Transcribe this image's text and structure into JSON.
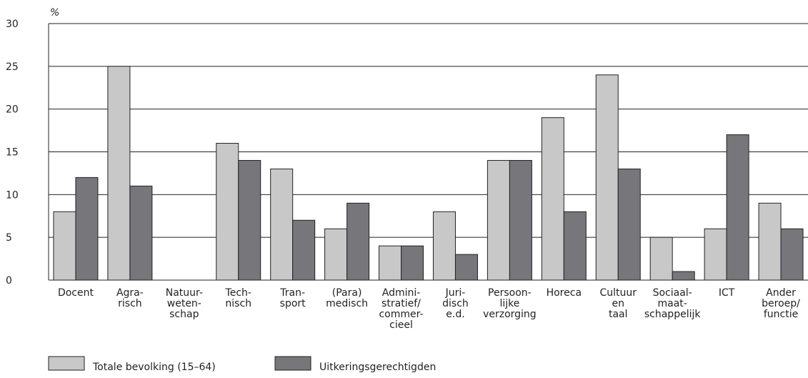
{
  "chart_data": {
    "type": "bar",
    "y_label": "%",
    "categories": [
      "Docent",
      "Agra-\nrisch",
      "Natuur-\nweten-\nschap",
      "Tech-\nnisch",
      "Tran-\nsport",
      "(Para)\nmedisch",
      "Admini-\nstratief/\ncommer-\ncieel",
      "Juri-\ndisch\ne.d.",
      "Persoon-\nlijke\nverzorging",
      "Horeca",
      "Cultuur\nen\ntaal",
      "Sociaal-\nmaat-\nschappelijk",
      "ICT",
      "Ander\nberoep/\nfunctie"
    ],
    "series": [
      {
        "name": "Totale bevolking (15–64)",
        "color": "#c8c8c8",
        "values": [
          8,
          25,
          0,
          16,
          13,
          6,
          4,
          8,
          14,
          19,
          24,
          5,
          6,
          9
        ]
      },
      {
        "name": "Uitkeringsgerechtigden",
        "color": "#76767b",
        "values": [
          12,
          11,
          0,
          14,
          7,
          9,
          4,
          3,
          14,
          8,
          13,
          1,
          17,
          6
        ]
      }
    ],
    "ylim": [
      0,
      30
    ],
    "yticks": [
      0,
      5,
      10,
      15,
      20,
      25,
      30
    ],
    "grid": true
  }
}
